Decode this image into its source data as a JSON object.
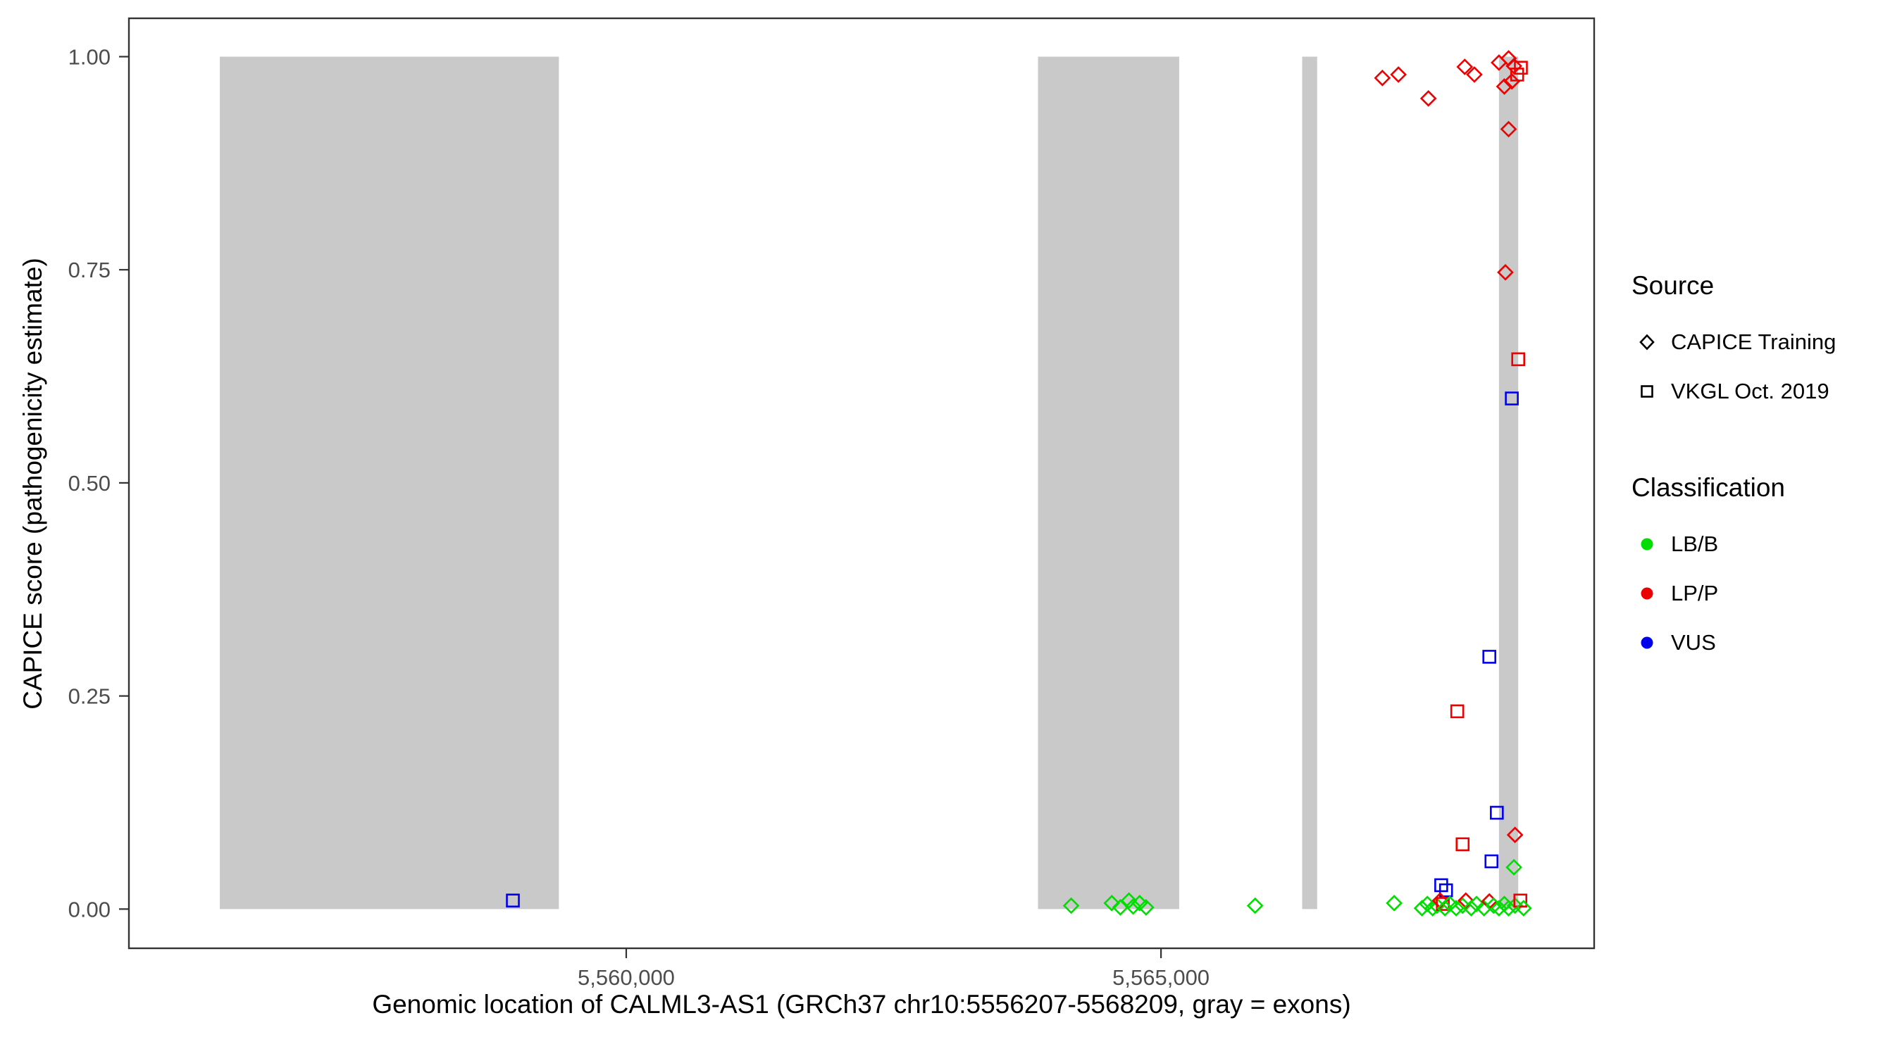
{
  "chart_data": {
    "type": "scatter",
    "title": "",
    "xlabel": "Genomic location of CALML3-AS1 (GRCh37 chr10:5556207-5568209, gray = exons)",
    "ylabel": "CAPICE score (pathogenicity estimate)",
    "xlim": [
      5555350,
      5569050
    ],
    "ylim": [
      -0.046,
      1.045
    ],
    "grid": false,
    "legend_position": "right",
    "x_ticks": [
      {
        "value": 5560000,
        "label": "5,560,000"
      },
      {
        "value": 5565000,
        "label": "5,565,000"
      }
    ],
    "y_ticks": [
      {
        "value": 0.0,
        "label": "0.00"
      },
      {
        "value": 0.25,
        "label": "0.25"
      },
      {
        "value": 0.5,
        "label": "0.50"
      },
      {
        "value": 0.75,
        "label": "0.75"
      },
      {
        "value": 1.0,
        "label": "1.00"
      }
    ],
    "exons": [
      {
        "start": 5556200,
        "end": 5559370
      },
      {
        "start": 5563850,
        "end": 5565170
      },
      {
        "start": 5566320,
        "end": 5566460
      },
      {
        "start": 5568160,
        "end": 5568340
      }
    ],
    "colors": {
      "LB/B": "#00dd00",
      "LP/P": "#ee0000",
      "VUS": "#0000ee",
      "exon": "#c9c9c9",
      "tick_text": "#4d4d4d",
      "border": "#333333"
    },
    "shape_by_source": {
      "CAPICE Training": "diamond",
      "VKGL Oct. 2019": "square"
    },
    "points": [
      {
        "x": 5558940,
        "y": 0.01,
        "source": "VKGL Oct. 2019",
        "class": "VUS"
      },
      {
        "x": 5564160,
        "y": 0.004,
        "source": "CAPICE Training",
        "class": "LB/B"
      },
      {
        "x": 5564540,
        "y": 0.007,
        "source": "CAPICE Training",
        "class": "LB/B"
      },
      {
        "x": 5564620,
        "y": 0.002,
        "source": "CAPICE Training",
        "class": "LB/B"
      },
      {
        "x": 5564700,
        "y": 0.01,
        "source": "CAPICE Training",
        "class": "LB/B"
      },
      {
        "x": 5564740,
        "y": 0.003,
        "source": "CAPICE Training",
        "class": "LB/B"
      },
      {
        "x": 5564800,
        "y": 0.007,
        "source": "CAPICE Training",
        "class": "LB/B"
      },
      {
        "x": 5564860,
        "y": 0.002,
        "source": "CAPICE Training",
        "class": "LB/B"
      },
      {
        "x": 5565880,
        "y": 0.004,
        "source": "CAPICE Training",
        "class": "LB/B"
      },
      {
        "x": 5567070,
        "y": 0.975,
        "source": "CAPICE Training",
        "class": "LP/P"
      },
      {
        "x": 5567220,
        "y": 0.979,
        "source": "CAPICE Training",
        "class": "LP/P"
      },
      {
        "x": 5567500,
        "y": 0.951,
        "source": "CAPICE Training",
        "class": "LP/P"
      },
      {
        "x": 5567840,
        "y": 0.988,
        "source": "CAPICE Training",
        "class": "LP/P"
      },
      {
        "x": 5567930,
        "y": 0.979,
        "source": "CAPICE Training",
        "class": "LP/P"
      },
      {
        "x": 5568160,
        "y": 0.993,
        "source": "CAPICE Training",
        "class": "LP/P"
      },
      {
        "x": 5568250,
        "y": 0.998,
        "source": "CAPICE Training",
        "class": "LP/P"
      },
      {
        "x": 5568300,
        "y": 0.989,
        "source": "CAPICE Training",
        "class": "LP/P"
      },
      {
        "x": 5568210,
        "y": 0.965,
        "source": "CAPICE Training",
        "class": "LP/P"
      },
      {
        "x": 5568280,
        "y": 0.971,
        "source": "CAPICE Training",
        "class": "LP/P"
      },
      {
        "x": 5568330,
        "y": 0.979,
        "source": "VKGL Oct. 2019",
        "class": "LP/P"
      },
      {
        "x": 5568365,
        "y": 0.987,
        "source": "VKGL Oct. 2019",
        "class": "LP/P"
      },
      {
        "x": 5568250,
        "y": 0.915,
        "source": "CAPICE Training",
        "class": "LP/P"
      },
      {
        "x": 5568220,
        "y": 0.747,
        "source": "CAPICE Training",
        "class": "LP/P"
      },
      {
        "x": 5568340,
        "y": 0.645,
        "source": "VKGL Oct. 2019",
        "class": "LP/P"
      },
      {
        "x": 5568280,
        "y": 0.599,
        "source": "VKGL Oct. 2019",
        "class": "VUS"
      },
      {
        "x": 5568070,
        "y": 0.296,
        "source": "VKGL Oct. 2019",
        "class": "VUS"
      },
      {
        "x": 5567770,
        "y": 0.232,
        "source": "VKGL Oct. 2019",
        "class": "LP/P"
      },
      {
        "x": 5568140,
        "y": 0.113,
        "source": "VKGL Oct. 2019",
        "class": "VUS"
      },
      {
        "x": 5568310,
        "y": 0.087,
        "source": "CAPICE Training",
        "class": "LP/P"
      },
      {
        "x": 5567820,
        "y": 0.076,
        "source": "VKGL Oct. 2019",
        "class": "LP/P"
      },
      {
        "x": 5568090,
        "y": 0.056,
        "source": "VKGL Oct. 2019",
        "class": "VUS"
      },
      {
        "x": 5568300,
        "y": 0.049,
        "source": "CAPICE Training",
        "class": "LB/B"
      },
      {
        "x": 5567620,
        "y": 0.028,
        "source": "VKGL Oct. 2019",
        "class": "VUS"
      },
      {
        "x": 5567665,
        "y": 0.022,
        "source": "VKGL Oct. 2019",
        "class": "VUS"
      },
      {
        "x": 5567180,
        "y": 0.007,
        "source": "CAPICE Training",
        "class": "LB/B"
      },
      {
        "x": 5567440,
        "y": 0.001,
        "source": "CAPICE Training",
        "class": "LB/B"
      },
      {
        "x": 5567490,
        "y": 0.006,
        "source": "CAPICE Training",
        "class": "LB/B"
      },
      {
        "x": 5567540,
        "y": 0.001,
        "source": "CAPICE Training",
        "class": "LB/B"
      },
      {
        "x": 5567580,
        "y": 0.004,
        "source": "CAPICE Training",
        "class": "LB/B"
      },
      {
        "x": 5567610,
        "y": 0.01,
        "source": "CAPICE Training",
        "class": "LP/P"
      },
      {
        "x": 5567635,
        "y": 0.006,
        "source": "VKGL Oct. 2019",
        "class": "LP/P"
      },
      {
        "x": 5567655,
        "y": 0.001,
        "source": "CAPICE Training",
        "class": "LB/B"
      },
      {
        "x": 5567700,
        "y": 0.006,
        "source": "CAPICE Training",
        "class": "LB/B"
      },
      {
        "x": 5567760,
        "y": 0.001,
        "source": "CAPICE Training",
        "class": "LB/B"
      },
      {
        "x": 5567820,
        "y": 0.004,
        "source": "CAPICE Training",
        "class": "LB/B"
      },
      {
        "x": 5567850,
        "y": 0.01,
        "source": "CAPICE Training",
        "class": "LP/P"
      },
      {
        "x": 5567900,
        "y": 0.001,
        "source": "CAPICE Training",
        "class": "LB/B"
      },
      {
        "x": 5567950,
        "y": 0.006,
        "source": "CAPICE Training",
        "class": "LB/B"
      },
      {
        "x": 5568020,
        "y": 0.001,
        "source": "CAPICE Training",
        "class": "LB/B"
      },
      {
        "x": 5568070,
        "y": 0.009,
        "source": "CAPICE Training",
        "class": "LP/P"
      },
      {
        "x": 5568110,
        "y": 0.004,
        "source": "CAPICE Training",
        "class": "LB/B"
      },
      {
        "x": 5568160,
        "y": 0.001,
        "source": "CAPICE Training",
        "class": "LB/B"
      },
      {
        "x": 5568210,
        "y": 0.006,
        "source": "CAPICE Training",
        "class": "LB/B"
      },
      {
        "x": 5568250,
        "y": 0.001,
        "source": "CAPICE Training",
        "class": "LB/B"
      },
      {
        "x": 5568310,
        "y": 0.004,
        "source": "CAPICE Training",
        "class": "LB/B"
      },
      {
        "x": 5568360,
        "y": 0.01,
        "source": "VKGL Oct. 2019",
        "class": "LP/P"
      },
      {
        "x": 5568390,
        "y": 0.001,
        "source": "CAPICE Training",
        "class": "LB/B"
      }
    ]
  },
  "legend": {
    "source": {
      "title": "Source",
      "items": [
        {
          "label": "CAPICE Training",
          "shape": "diamond"
        },
        {
          "label": "VKGL Oct. 2019",
          "shape": "square"
        }
      ]
    },
    "classification": {
      "title": "Classification",
      "items": [
        {
          "label": "LB/B",
          "color": "#00dd00"
        },
        {
          "label": "LP/P",
          "color": "#ee0000"
        },
        {
          "label": "VUS",
          "color": "#0000ee"
        }
      ]
    }
  }
}
